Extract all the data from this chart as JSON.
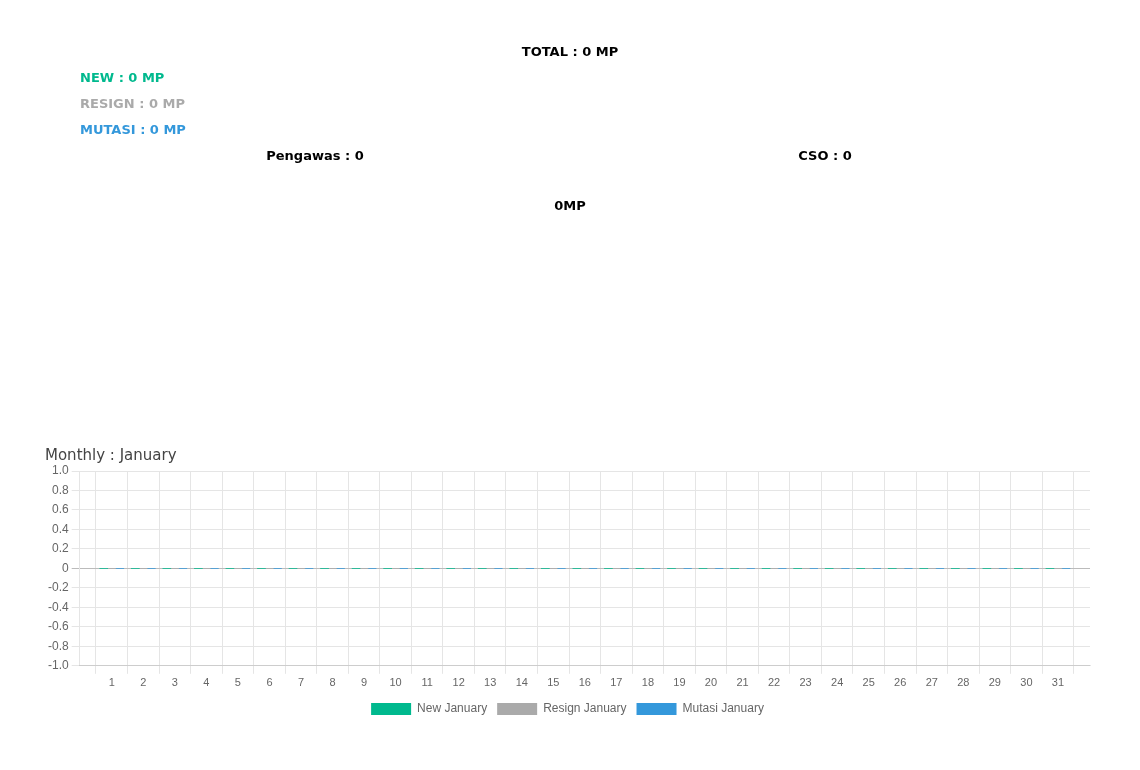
{
  "chart_data": [
    {
      "type": "other",
      "title": "TOTAL : 0 MP",
      "annotations": [
        "NEW : 0 MP",
        "RESIGN : 0 MP",
        "MUTASI : 0 MP",
        "Pengawas : 0",
        "CSO : 0",
        "0MP"
      ],
      "colors": [
        "#00b98e",
        "#aaaaaa",
        "#3498db",
        "#000000",
        "#000000",
        "#000000"
      ]
    },
    {
      "type": "bar",
      "title": "Monthly : January",
      "x": [
        1,
        2,
        3,
        4,
        5,
        6,
        7,
        8,
        9,
        10,
        11,
        12,
        13,
        14,
        15,
        16,
        17,
        18,
        19,
        20,
        21,
        22,
        23,
        24,
        25,
        26,
        27,
        28,
        29,
        30,
        31
      ],
      "xlim": [
        0.5,
        31.5
      ],
      "xticks": [
        1,
        2,
        3,
        4,
        5,
        6,
        7,
        8,
        9,
        10,
        11,
        12,
        13,
        14,
        15,
        16,
        17,
        18,
        19,
        20,
        21,
        22,
        23,
        24,
        25,
        26,
        27,
        28,
        29,
        30,
        31
      ],
      "series": [
        {
          "name": "New January",
          "color": "#00b98e",
          "values": [
            0,
            0,
            0,
            0,
            0,
            0,
            0,
            0,
            0,
            0,
            0,
            0,
            0,
            0,
            0,
            0,
            0,
            0,
            0,
            0,
            0,
            0,
            0,
            0,
            0,
            0,
            0,
            0,
            0,
            0,
            0
          ]
        },
        {
          "name": "Resign January",
          "color": "#aaaaaa",
          "values": [
            0,
            0,
            0,
            0,
            0,
            0,
            0,
            0,
            0,
            0,
            0,
            0,
            0,
            0,
            0,
            0,
            0,
            0,
            0,
            0,
            0,
            0,
            0,
            0,
            0,
            0,
            0,
            0,
            0,
            0,
            0
          ]
        },
        {
          "name": "Mutasi January",
          "color": "#3498db",
          "values": [
            0,
            0,
            0,
            0,
            0,
            0,
            0,
            0,
            0,
            0,
            0,
            0,
            0,
            0,
            0,
            0,
            0,
            0,
            0,
            0,
            0,
            0,
            0,
            0,
            0,
            0,
            0,
            0,
            0,
            0,
            0
          ]
        }
      ],
      "ylim": [
        -1,
        1
      ],
      "yticks": [
        {
          "value": -1,
          "label": "-1.0"
        },
        {
          "value": -0.8,
          "label": "-0.8"
        },
        {
          "value": -0.6,
          "label": "-0.6"
        },
        {
          "value": -0.4,
          "label": "-0.4"
        },
        {
          "value": -0.2,
          "label": "-0.2"
        },
        0,
        {
          "value": 0.2,
          "label": "0.2"
        },
        {
          "value": 0.4,
          "label": "0.4"
        },
        {
          "value": 0.6,
          "label": "0.6"
        },
        {
          "value": 0.8,
          "label": "0.8"
        },
        {
          "value": 1,
          "label": "1.0"
        }
      ],
      "grid": true,
      "legend": "bottom"
    }
  ]
}
